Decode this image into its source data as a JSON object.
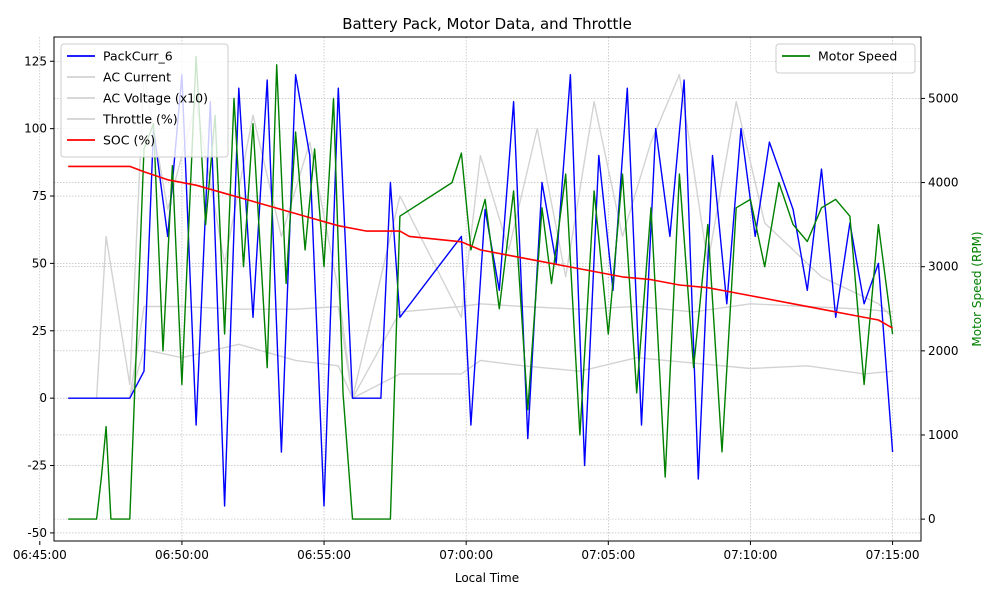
{
  "chart_data": {
    "type": "line",
    "title": "Battery Pack, Motor Data, and Throttle",
    "xlabel": "Local Time",
    "ylabel": "",
    "y2label": "Motor Speed (RPM)",
    "x_range": [
      "06:45:30",
      "07:16:00"
    ],
    "x_ticks": [
      "06:45:00",
      "06:50:00",
      "06:55:00",
      "07:00:00",
      "07:05:00",
      "07:10:00",
      "07:15:00"
    ],
    "ylim": [
      -53,
      134
    ],
    "y_ticks": [
      -50,
      -25,
      0,
      25,
      50,
      75,
      100,
      125
    ],
    "y2lim": [
      -260,
      5730
    ],
    "y2_ticks": [
      0,
      1000,
      2000,
      3000,
      4000,
      5000
    ],
    "grid": true,
    "legend_left": [
      "PackCurr_6",
      "AC Current",
      "AC Voltage (x10)",
      "Throttle (%)",
      "SOC (%)"
    ],
    "legend_right": [
      "Motor Speed"
    ],
    "colors": {
      "PackCurr_6": "#0000ff",
      "AC Current": "#d3d3d3",
      "AC Voltage (x10)": "#d3d3d3",
      "Throttle (%)": "#d3d3d3",
      "SOC (%)": "#ff0000",
      "Motor Speed": "#008000"
    },
    "series": [
      {
        "name": "SOC (%)",
        "axis": "left",
        "x": [
          "06:46:00",
          "06:48:10",
          "06:48:40",
          "06:49:30",
          "06:50:30",
          "06:51:30",
          "06:52:30",
          "06:53:30",
          "06:54:30",
          "06:55:30",
          "06:56:30",
          "06:57:40",
          "06:58:00",
          "06:59:50",
          "07:00:30",
          "07:01:30",
          "07:02:30",
          "07:03:30",
          "07:04:30",
          "07:05:30",
          "07:06:30",
          "07:07:30",
          "07:08:30",
          "07:09:30",
          "07:10:30",
          "07:11:30",
          "07:12:30",
          "07:13:30",
          "07:14:30",
          "07:15:00"
        ],
        "values": [
          86,
          86,
          84,
          81,
          79,
          76,
          73,
          70,
          67,
          64,
          62,
          62,
          60,
          58,
          55,
          53,
          51,
          49,
          47,
          45,
          44,
          42,
          41,
          39,
          37,
          35,
          33,
          31,
          29,
          26
        ]
      },
      {
        "name": "PackCurr_6",
        "axis": "left",
        "x": [
          "06:46:00",
          "06:47:00",
          "06:48:10",
          "06:48:40",
          "06:49:00",
          "06:49:30",
          "06:50:00",
          "06:50:30",
          "06:51:00",
          "06:51:30",
          "06:52:00",
          "06:52:30",
          "06:53:00",
          "06:53:30",
          "06:54:00",
          "06:54:30",
          "06:55:00",
          "06:55:30",
          "06:56:00",
          "06:57:00",
          "06:57:20",
          "06:57:40",
          "06:59:50",
          "07:00:10",
          "07:00:40",
          "07:01:10",
          "07:01:40",
          "07:02:10",
          "07:02:40",
          "07:03:10",
          "07:03:40",
          "07:04:10",
          "07:04:40",
          "07:05:10",
          "07:05:40",
          "07:06:10",
          "07:06:40",
          "07:07:10",
          "07:07:40",
          "07:08:10",
          "07:08:40",
          "07:09:10",
          "07:09:40",
          "07:10:10",
          "07:10:40",
          "07:11:30",
          "07:12:00",
          "07:12:30",
          "07:13:00",
          "07:13:30",
          "07:14:00",
          "07:14:30",
          "07:15:00"
        ],
        "values": [
          0,
          0,
          0,
          10,
          100,
          60,
          120,
          -10,
          110,
          -40,
          115,
          30,
          118,
          -20,
          120,
          90,
          -40,
          115,
          0,
          0,
          80,
          30,
          60,
          -10,
          70,
          40,
          110,
          -15,
          80,
          50,
          120,
          -25,
          90,
          40,
          115,
          -10,
          100,
          60,
          118,
          -30,
          90,
          35,
          100,
          60,
          95,
          70,
          40,
          85,
          30,
          65,
          35,
          50,
          -20
        ]
      },
      {
        "name": "AC Current",
        "axis": "left",
        "x": [
          "06:46:00",
          "06:47:00",
          "06:47:20",
          "06:48:10",
          "06:48:40",
          "06:49:30",
          "06:50:30",
          "06:51:30",
          "06:52:30",
          "06:53:30",
          "06:54:30",
          "06:55:30",
          "06:56:00",
          "06:57:40",
          "06:59:50",
          "07:00:30",
          "07:01:30",
          "07:02:30",
          "07:03:30",
          "07:04:30",
          "07:05:30",
          "07:06:30",
          "07:07:30",
          "07:08:30",
          "07:09:30",
          "07:10:30",
          "07:11:30",
          "07:12:30",
          "07:13:30",
          "07:14:30",
          "07:15:00"
        ],
        "values": [
          0,
          0,
          60,
          5,
          120,
          70,
          110,
          50,
          105,
          60,
          95,
          40,
          0,
          75,
          30,
          90,
          55,
          100,
          45,
          110,
          60,
          95,
          120,
          50,
          110,
          65,
          55,
          45,
          40,
          35,
          30
        ]
      },
      {
        "name": "AC Voltage (x10)",
        "axis": "left",
        "x": [
          "06:46:00",
          "06:47:00",
          "06:48:10",
          "06:48:40",
          "06:50:00",
          "06:52:00",
          "06:54:00",
          "06:55:30",
          "06:56:00",
          "06:57:40",
          "06:59:50",
          "07:00:30",
          "07:02:00",
          "07:04:00",
          "07:06:00",
          "07:08:00",
          "07:10:00",
          "07:12:00",
          "07:14:00",
          "07:15:00"
        ],
        "values": [
          0,
          0,
          0,
          34,
          34,
          33,
          33,
          34,
          0,
          32,
          34,
          35,
          34,
          33,
          34,
          32,
          35,
          34,
          33,
          32
        ]
      },
      {
        "name": "Throttle (%)",
        "axis": "left",
        "x": [
          "06:46:00",
          "06:47:00",
          "06:48:10",
          "06:48:40",
          "06:50:00",
          "06:52:00",
          "06:54:00",
          "06:55:30",
          "06:56:00",
          "06:57:40",
          "06:59:50",
          "07:00:30",
          "07:02:00",
          "07:04:00",
          "07:06:00",
          "07:08:00",
          "07:10:00",
          "07:12:00",
          "07:14:00",
          "07:15:00"
        ],
        "values": [
          0,
          0,
          0,
          18,
          15,
          20,
          14,
          12,
          0,
          9,
          9,
          14,
          12,
          10,
          15,
          13,
          11,
          12,
          9,
          10
        ]
      },
      {
        "name": "Motor Speed",
        "axis": "right",
        "x": [
          "06:46:00",
          "06:47:00",
          "06:47:10",
          "06:47:20",
          "06:47:30",
          "06:48:00",
          "06:48:10",
          "06:48:40",
          "06:49:00",
          "06:49:20",
          "06:49:40",
          "06:50:00",
          "06:50:30",
          "06:50:50",
          "06:51:10",
          "06:51:30",
          "06:51:50",
          "06:52:10",
          "06:52:30",
          "06:53:00",
          "06:53:20",
          "06:53:40",
          "06:54:00",
          "06:54:20",
          "06:54:40",
          "06:55:00",
          "06:55:20",
          "06:55:40",
          "06:56:00",
          "06:57:20",
          "06:57:40",
          "06:59:30",
          "06:59:50",
          "07:00:10",
          "07:00:40",
          "07:01:10",
          "07:01:40",
          "07:02:10",
          "07:02:40",
          "07:03:00",
          "07:03:30",
          "07:04:00",
          "07:04:30",
          "07:05:00",
          "07:05:30",
          "07:06:00",
          "07:06:30",
          "07:07:00",
          "07:07:30",
          "07:08:00",
          "07:08:30",
          "07:09:00",
          "07:09:30",
          "07:10:00",
          "07:10:30",
          "07:11:00",
          "07:11:30",
          "07:12:00",
          "07:12:30",
          "07:13:00",
          "07:13:30",
          "07:14:00",
          "07:14:30",
          "07:15:00"
        ],
        "values": [
          0,
          0,
          500,
          1100,
          0,
          0,
          0,
          4400,
          4700,
          2000,
          4200,
          1600,
          5500,
          3500,
          4800,
          2200,
          5000,
          3000,
          4700,
          1800,
          5400,
          2800,
          4600,
          3200,
          4400,
          3000,
          5000,
          1500,
          0,
          0,
          3600,
          4000,
          4350,
          3200,
          3800,
          2500,
          3900,
          1300,
          3700,
          2800,
          4100,
          1000,
          3900,
          2200,
          4100,
          1500,
          3700,
          500,
          4100,
          1800,
          3500,
          800,
          3700,
          3800,
          3000,
          4000,
          3500,
          3300,
          3700,
          3800,
          3600,
          1600,
          3500,
          2200
        ]
      }
    ]
  }
}
